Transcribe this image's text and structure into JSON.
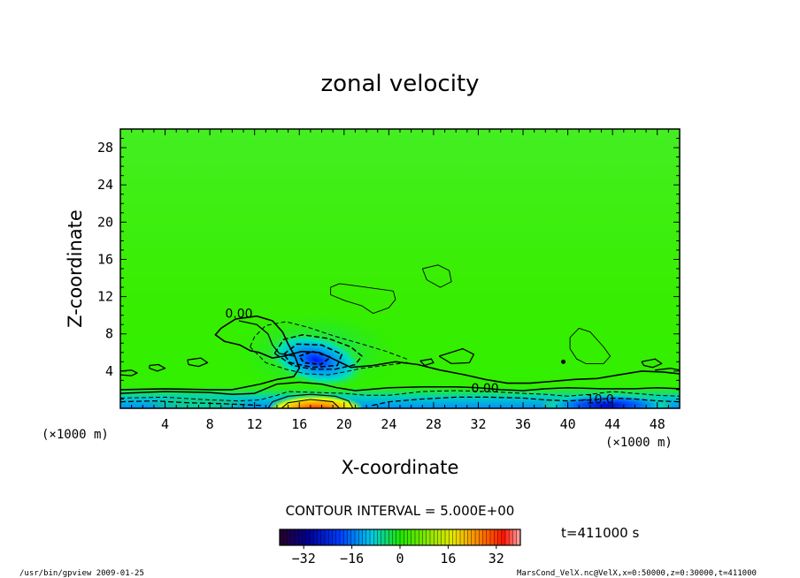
{
  "chart_data": {
    "type": "heatmap",
    "title": "zonal velocity",
    "xlabel": "X-coordinate",
    "ylabel": "Z-coordinate",
    "x_unit_left": "(×1000 m)",
    "x_unit_right": "(×1000 m)",
    "xlim": [
      0,
      50
    ],
    "ylim": [
      0,
      30
    ],
    "x_ticks": [
      4,
      8,
      12,
      16,
      20,
      24,
      28,
      32,
      36,
      40,
      44,
      48
    ],
    "y_ticks": [
      4,
      8,
      12,
      16,
      20,
      24,
      28
    ],
    "contour_interval_text": "CONTOUR INTERVAL = 5.000E+00",
    "time_text": "t=411000 s",
    "colorbar": {
      "range": [
        -40,
        40
      ],
      "ticks": [
        -32,
        -16,
        0,
        16,
        32
      ]
    },
    "contour_labels": [
      {
        "text": "0.00",
        "x": 10.6,
        "y": 10.2
      },
      {
        "text": "0.00",
        "x": 32.6,
        "y": 2.2
      },
      {
        "text": "-10.0",
        "x": 42.7,
        "y": 1.0
      }
    ],
    "features": [
      {
        "kind": "negative-core",
        "x": 17.5,
        "y": 5.2,
        "value": -25
      },
      {
        "kind": "positive-core",
        "x": 17.5,
        "y": 0.4,
        "value": 30
      }
    ],
    "colors": {
      "background_field": "#33ee00",
      "positive_core": "#ff2200",
      "negative_core": "#0033ff"
    }
  },
  "footer": {
    "left": "/usr/bin/gpview   2009-01-25",
    "right": "MarsCond_VelX.nc@VelX,x=0:50000,z=0:30000,t=411000"
  }
}
